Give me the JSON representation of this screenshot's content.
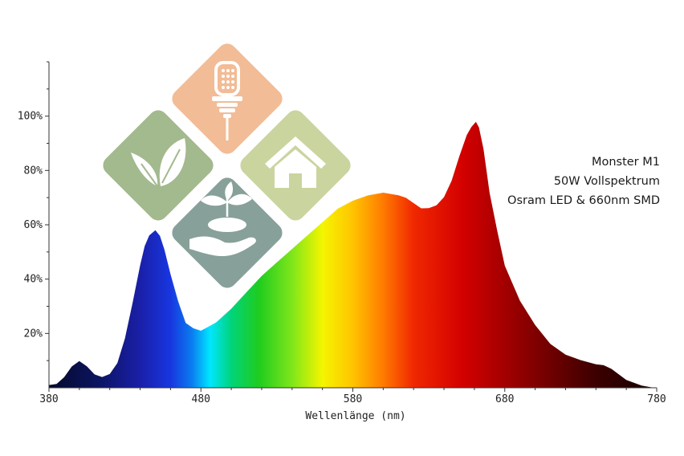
{
  "chart_data": {
    "type": "area",
    "title": "",
    "xlabel": "Wellenlänge (nm)",
    "ylabel": "",
    "xlim": [
      380,
      780
    ],
    "ylim": [
      0,
      120
    ],
    "x_ticks": [
      380,
      480,
      580,
      680,
      780
    ],
    "x_tick_labels": [
      "380",
      "480",
      "580",
      "680",
      "780"
    ],
    "y_ticks": [
      20,
      40,
      60,
      80,
      100
    ],
    "y_tick_labels": [
      "20%",
      "40%",
      "60%",
      "80%",
      "100%"
    ],
    "grid": false,
    "fill": "wavelength-spectrum-gradient",
    "series": [
      {
        "x": [
          380,
          385,
          390,
          395,
          400,
          405,
          410,
          415,
          420,
          425,
          430,
          435,
          440,
          443,
          446,
          450,
          453,
          456,
          460,
          465,
          470,
          475,
          480,
          490,
          500,
          510,
          520,
          530,
          540,
          550,
          560,
          570,
          580,
          590,
          600,
          610,
          615,
          620,
          625,
          630,
          635,
          640,
          645,
          650,
          655,
          658,
          661,
          663,
          666,
          670,
          675,
          680,
          690,
          700,
          710,
          720,
          730,
          740,
          745,
          750,
          755,
          760,
          770,
          780
        ],
        "y": [
          1,
          1.5,
          4,
          8,
          10,
          8,
          5,
          4,
          5,
          9,
          18,
          31,
          45,
          52,
          56,
          58,
          56,
          51,
          42,
          32,
          24,
          22,
          21,
          24,
          29,
          35,
          41,
          46,
          51,
          56,
          61,
          66,
          69,
          71,
          72,
          71,
          70,
          68,
          66,
          66,
          67,
          70,
          76,
          85,
          93,
          96,
          98,
          96,
          88,
          72,
          58,
          45,
          32,
          23,
          16,
          12,
          10,
          8.5,
          8.2,
          7,
          5,
          3,
          1,
          0
        ]
      }
    ],
    "annotations": [
      "Monster M1",
      "50W Vollspektrum",
      "Osram LED & 660nm SMD"
    ]
  },
  "logo": {
    "tiles": [
      {
        "name": "led-bulb-tile",
        "color": "#F2BC96"
      },
      {
        "name": "leaves-tile",
        "color": "#A3B98E"
      },
      {
        "name": "house-tile",
        "color": "#CAD49E"
      },
      {
        "name": "hand-plant-tile",
        "color": "#87A09A"
      }
    ]
  }
}
